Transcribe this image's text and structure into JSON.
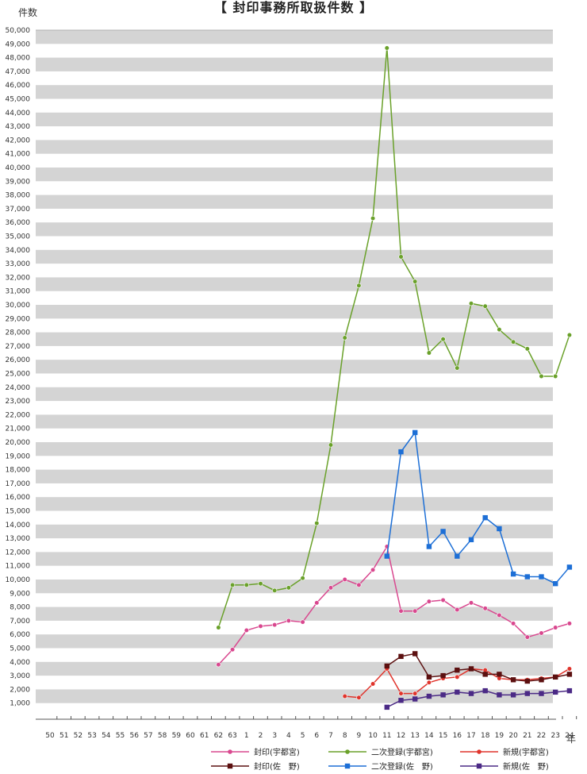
{
  "chart_data": {
    "type": "line",
    "title": "【 封印事務所取扱件数 】",
    "ylabel": "件数",
    "xlabel": "年",
    "ylim": [
      0,
      50000
    ],
    "ytick_step": 1000,
    "grid": true,
    "legend_position": "bottom",
    "categories": [
      "50",
      "51",
      "52",
      "53",
      "54",
      "55",
      "56",
      "57",
      "58",
      "59",
      "60",
      "61",
      "62",
      "63",
      "1",
      "2",
      "3",
      "4",
      "5",
      "6",
      "7",
      "8",
      "9",
      "10",
      "11",
      "12",
      "13",
      "14",
      "15",
      "16",
      "17",
      "18",
      "19",
      "20",
      "21",
      "22",
      "23",
      "24"
    ],
    "series": [
      {
        "name": "封印(宇都宮)",
        "color": "#d9488f",
        "marker": "circle",
        "values": [
          null,
          null,
          null,
          null,
          null,
          null,
          null,
          null,
          null,
          null,
          null,
          null,
          3800,
          4900,
          6300,
          6600,
          6700,
          7000,
          6900,
          8300,
          9400,
          10000,
          9600,
          10700,
          12400,
          7700,
          7700,
          8400,
          8500,
          7800,
          8300,
          7900,
          7400,
          6800,
          5800,
          6100,
          6500,
          6800
        ]
      },
      {
        "name": "二次登録(宇都宮)",
        "color": "#6aa12a",
        "marker": "circle",
        "values": [
          null,
          null,
          null,
          null,
          null,
          null,
          null,
          null,
          null,
          null,
          null,
          null,
          6500,
          9600,
          9600,
          9700,
          9200,
          9400,
          10100,
          14100,
          19800,
          27600,
          31400,
          36300,
          48700,
          33500,
          31700,
          26500,
          27500,
          25400,
          30100,
          29900,
          28200,
          27300,
          26800,
          24800,
          24800,
          27800
        ]
      },
      {
        "name": "新規(宇都宮)",
        "color": "#e0342c",
        "marker": "circle",
        "values": [
          null,
          null,
          null,
          null,
          null,
          null,
          null,
          null,
          null,
          null,
          null,
          null,
          null,
          null,
          null,
          null,
          null,
          null,
          null,
          null,
          null,
          1500,
          1400,
          2400,
          3500,
          1700,
          1700,
          2500,
          2800,
          2900,
          3500,
          3400,
          2800,
          2700,
          2700,
          2800,
          2900,
          3500
        ]
      },
      {
        "name": "封印(佐　野)",
        "color": "#5c1010",
        "marker": "square",
        "values": [
          null,
          null,
          null,
          null,
          null,
          null,
          null,
          null,
          null,
          null,
          null,
          null,
          null,
          null,
          null,
          null,
          null,
          null,
          null,
          null,
          null,
          null,
          null,
          null,
          3700,
          4400,
          4600,
          2900,
          3000,
          3400,
          3500,
          3100,
          3100,
          2700,
          2600,
          2700,
          2900,
          3100
        ]
      },
      {
        "name": "二次登録(佐　野)",
        "color": "#1d6fd6",
        "marker": "square",
        "values": [
          null,
          null,
          null,
          null,
          null,
          null,
          null,
          null,
          null,
          null,
          null,
          null,
          null,
          null,
          null,
          null,
          null,
          null,
          null,
          null,
          null,
          null,
          null,
          null,
          11700,
          19300,
          20700,
          12400,
          13500,
          11700,
          12900,
          14500,
          13700,
          10400,
          10200,
          10200,
          9700,
          10900
        ]
      },
      {
        "name": "新規(佐　野)",
        "color": "#4b2a86",
        "marker": "square",
        "values": [
          null,
          null,
          null,
          null,
          null,
          null,
          null,
          null,
          null,
          null,
          null,
          null,
          null,
          null,
          null,
          null,
          null,
          null,
          null,
          null,
          null,
          null,
          null,
          null,
          700,
          1200,
          1300,
          1500,
          1600,
          1800,
          1700,
          1900,
          1600,
          1600,
          1700,
          1700,
          1800,
          1900
        ]
      }
    ]
  }
}
